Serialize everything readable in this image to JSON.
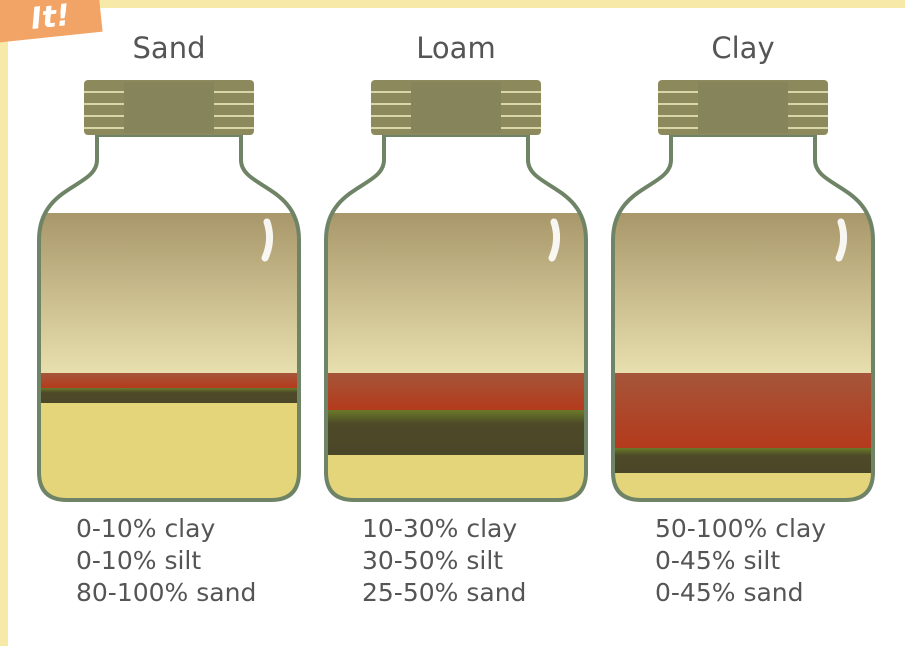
{
  "sticker": "It!",
  "jars": [
    {
      "title": "Sand",
      "lines": [
        "0-10% clay",
        "0-10% silt",
        "80-100% sand"
      ]
    },
    {
      "title": "Loam",
      "lines": [
        "10-30% clay",
        "30-50% silt",
        "25-50% sand"
      ]
    },
    {
      "title": "Clay",
      "lines": [
        "50-100% clay",
        "0-45% silt",
        "0-45% sand"
      ]
    }
  ]
}
